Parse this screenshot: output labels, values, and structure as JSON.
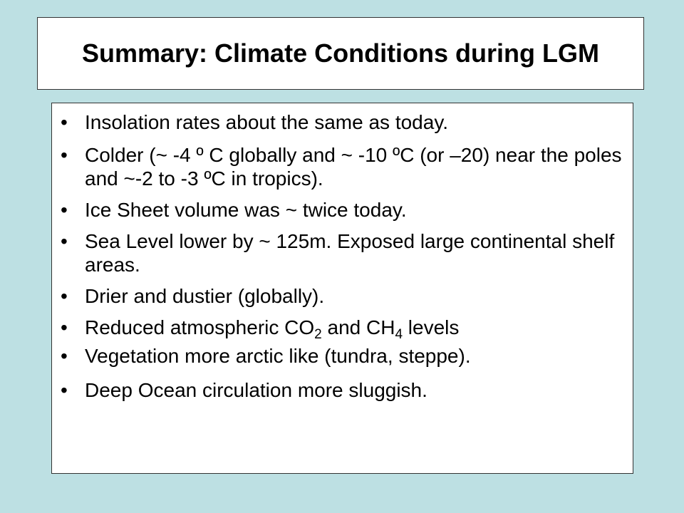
{
  "slide": {
    "title": "Summary: Climate Conditions during LGM",
    "bullet_glyph": "•",
    "bullets": [
      {
        "text": "Insolation rates about the same as today."
      },
      {
        "text": "Colder (~ -4 º C globally and ~ -10 ºC (or –20) near the poles and ~-2 to -3 ºC in tropics)."
      },
      {
        "text": "Ice Sheet volume was ~ twice today."
      },
      {
        "text": "Sea Level lower by ~ 125m. Exposed large continental shelf areas."
      },
      {
        "text": "Drier and dustier (globally)."
      },
      {
        "part1": "Reduced atmospheric CO",
        "sub1": "2",
        "part2": " and CH",
        "sub2": "4",
        "part3": " levels"
      },
      {
        "text": "Vegetation more arctic like (tundra, steppe)."
      },
      {
        "text": "Deep Ocean circulation more sluggish."
      }
    ]
  }
}
